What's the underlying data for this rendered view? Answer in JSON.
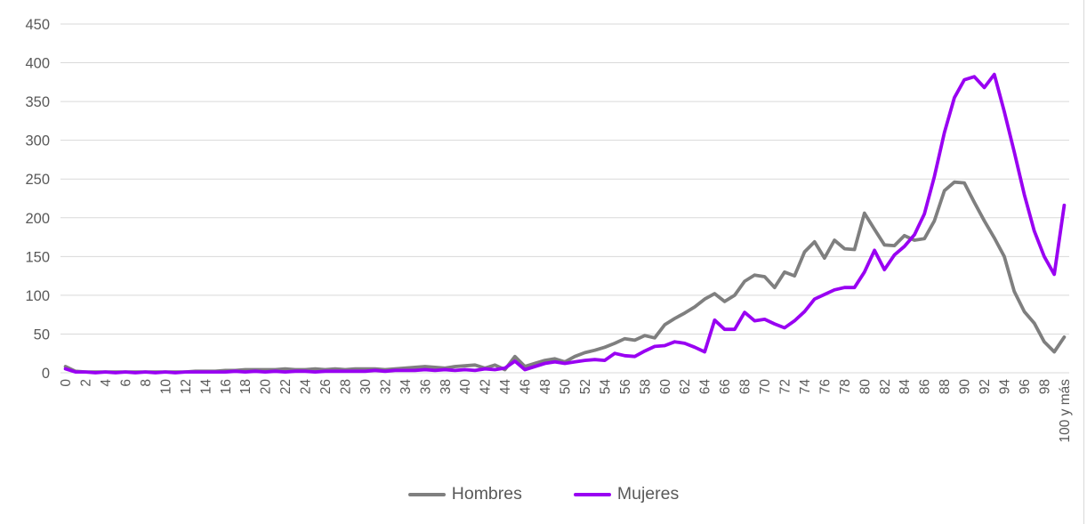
{
  "chart_data": {
    "type": "line",
    "title": "",
    "xlabel": "",
    "ylabel": "",
    "ylim": [
      0,
      450
    ],
    "y_ticks": [
      0,
      50,
      100,
      150,
      200,
      250,
      300,
      350,
      400,
      450
    ],
    "x_tick_step": 2,
    "grid": "horizontal",
    "legend_position": "bottom-center",
    "categories": [
      "0",
      "1",
      "2",
      "3",
      "4",
      "5",
      "6",
      "7",
      "8",
      "9",
      "10",
      "11",
      "12",
      "13",
      "14",
      "15",
      "16",
      "17",
      "18",
      "19",
      "20",
      "21",
      "22",
      "23",
      "24",
      "25",
      "26",
      "27",
      "28",
      "29",
      "30",
      "31",
      "32",
      "33",
      "34",
      "35",
      "36",
      "37",
      "38",
      "39",
      "40",
      "41",
      "42",
      "43",
      "44",
      "45",
      "46",
      "47",
      "48",
      "49",
      "50",
      "51",
      "52",
      "53",
      "54",
      "55",
      "56",
      "57",
      "58",
      "59",
      "60",
      "61",
      "62",
      "63",
      "64",
      "65",
      "66",
      "67",
      "68",
      "69",
      "70",
      "71",
      "72",
      "73",
      "74",
      "75",
      "76",
      "77",
      "78",
      "79",
      "80",
      "81",
      "82",
      "83",
      "84",
      "85",
      "86",
      "87",
      "88",
      "89",
      "90",
      "91",
      "92",
      "93",
      "94",
      "95",
      "96",
      "97",
      "98",
      "99",
      "100 y más"
    ],
    "series": [
      {
        "name": "Hombres",
        "color": "#7F7F7F",
        "values": [
          8,
          2,
          1,
          1,
          1,
          1,
          1,
          1,
          1,
          1,
          1,
          1,
          1,
          2,
          2,
          2,
          3,
          3,
          4,
          4,
          4,
          4,
          5,
          4,
          4,
          5,
          4,
          5,
          4,
          5,
          5,
          5,
          4,
          5,
          6,
          7,
          8,
          7,
          6,
          8,
          9,
          10,
          6,
          10,
          4,
          21,
          8,
          12,
          16,
          18,
          14,
          21,
          26,
          29,
          33,
          38,
          44,
          42,
          48,
          45,
          62,
          70,
          77,
          85,
          95,
          102,
          92,
          100,
          118,
          126,
          124,
          110,
          130,
          125,
          156,
          169,
          148,
          171,
          160,
          159,
          206,
          185,
          165,
          164,
          177,
          171,
          173,
          196,
          235,
          246,
          245,
          220,
          196,
          174,
          150,
          105,
          79,
          64,
          40,
          27,
          46
        ]
      },
      {
        "name": "Mujeres",
        "color": "#9900F2",
        "values": [
          5,
          1,
          1,
          0,
          1,
          0,
          1,
          0,
          1,
          0,
          1,
          0,
          1,
          1,
          1,
          1,
          1,
          2,
          1,
          2,
          1,
          2,
          1,
          2,
          2,
          1,
          2,
          2,
          2,
          2,
          2,
          3,
          2,
          3,
          3,
          3,
          4,
          3,
          4,
          3,
          4,
          3,
          5,
          4,
          6,
          15,
          4,
          8,
          12,
          14,
          12,
          14,
          16,
          17,
          16,
          25,
          22,
          21,
          28,
          34,
          35,
          40,
          38,
          33,
          27,
          68,
          56,
          56,
          78,
          67,
          69,
          63,
          58,
          67,
          79,
          95,
          101,
          107,
          110,
          110,
          130,
          158,
          133,
          152,
          163,
          178,
          205,
          253,
          310,
          355,
          378,
          382,
          368,
          385,
          337,
          285,
          230,
          183,
          150,
          127,
          216
        ]
      }
    ]
  },
  "style": {
    "axis_text_color": "#595959",
    "grid_color": "#D9D9D9",
    "background": "#FFFFFF"
  }
}
